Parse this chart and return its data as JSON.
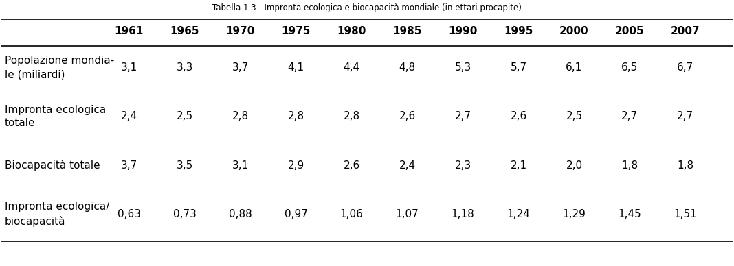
{
  "title": "Tabella 1.3 - Impronta ecologica e biocapacità mondiale (in ettari procapite)",
  "columns": [
    "1961",
    "1965",
    "1970",
    "1975",
    "1980",
    "1985",
    "1990",
    "1995",
    "2000",
    "2005",
    "2007"
  ],
  "row_labels": [
    "Popolazione mondia-\nle (miliardi)",
    "Impronta ecologica\ntotale",
    "Biocapacità totale",
    "Impronta ecologica/\nbiocapacità"
  ],
  "data": [
    [
      "3,1",
      "3,3",
      "3,7",
      "4,1",
      "4,4",
      "4,8",
      "5,3",
      "5,7",
      "6,1",
      "6,5",
      "6,7"
    ],
    [
      "2,4",
      "2,5",
      "2,8",
      "2,8",
      "2,8",
      "2,6",
      "2,7",
      "2,6",
      "2,5",
      "2,7",
      "2,7"
    ],
    [
      "3,7",
      "3,5",
      "3,1",
      "2,9",
      "2,6",
      "2,4",
      "2,3",
      "2,1",
      "2,0",
      "1,8",
      "1,8"
    ],
    [
      "0,63",
      "0,73",
      "0,88",
      "0,97",
      "1,06",
      "1,07",
      "1,18",
      "1,24",
      "1,29",
      "1,45",
      "1,51"
    ]
  ],
  "bg_color": "#ffffff",
  "text_color": "#000000",
  "title_fontsize": 8.5,
  "header_fontsize": 11,
  "cell_fontsize": 11,
  "row_label_fontsize": 11
}
